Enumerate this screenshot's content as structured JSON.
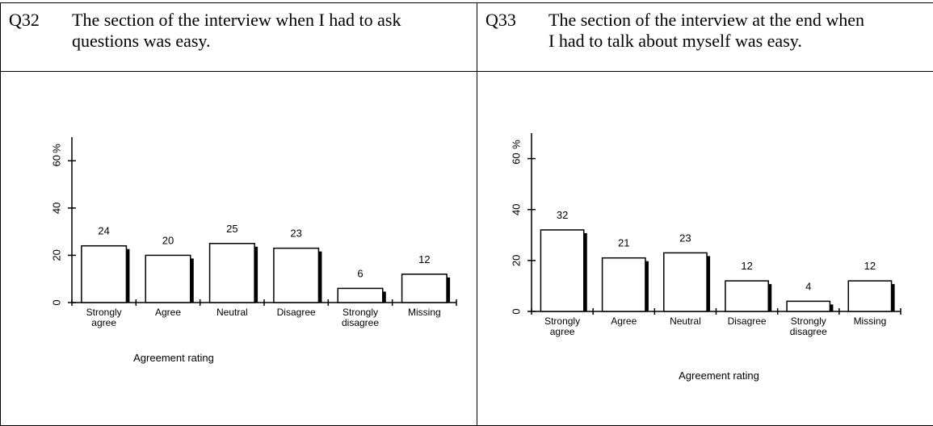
{
  "chart_data": [
    {
      "type": "bar",
      "question_id": "Q32",
      "title": "The section of the interview when I had to ask questions was easy.",
      "categories": [
        "Strongly agree",
        "Agree",
        "Neutral",
        "Disagree",
        "Strongly disagree",
        "Missing"
      ],
      "values": [
        24,
        20,
        25,
        23,
        6,
        12
      ],
      "xlabel": "Agreement rating",
      "ylabel": "%",
      "ylim": [
        0,
        70
      ],
      "yticks": [
        0,
        20,
        40,
        60
      ],
      "color": "#ffffff"
    },
    {
      "type": "bar",
      "question_id": "Q33",
      "title": "The section of the interview at the end when I had to talk about myself was easy.",
      "categories": [
        "Strongly agree",
        "Agree",
        "Neutral",
        "Disagree",
        "Strongly disagree",
        "Missing"
      ],
      "values": [
        32,
        21,
        23,
        12,
        4,
        12
      ],
      "xlabel": "Agreement rating",
      "ylabel": "%",
      "ylim": [
        0,
        70
      ],
      "yticks": [
        0,
        20,
        40,
        60
      ],
      "color": "#ffffff"
    }
  ]
}
